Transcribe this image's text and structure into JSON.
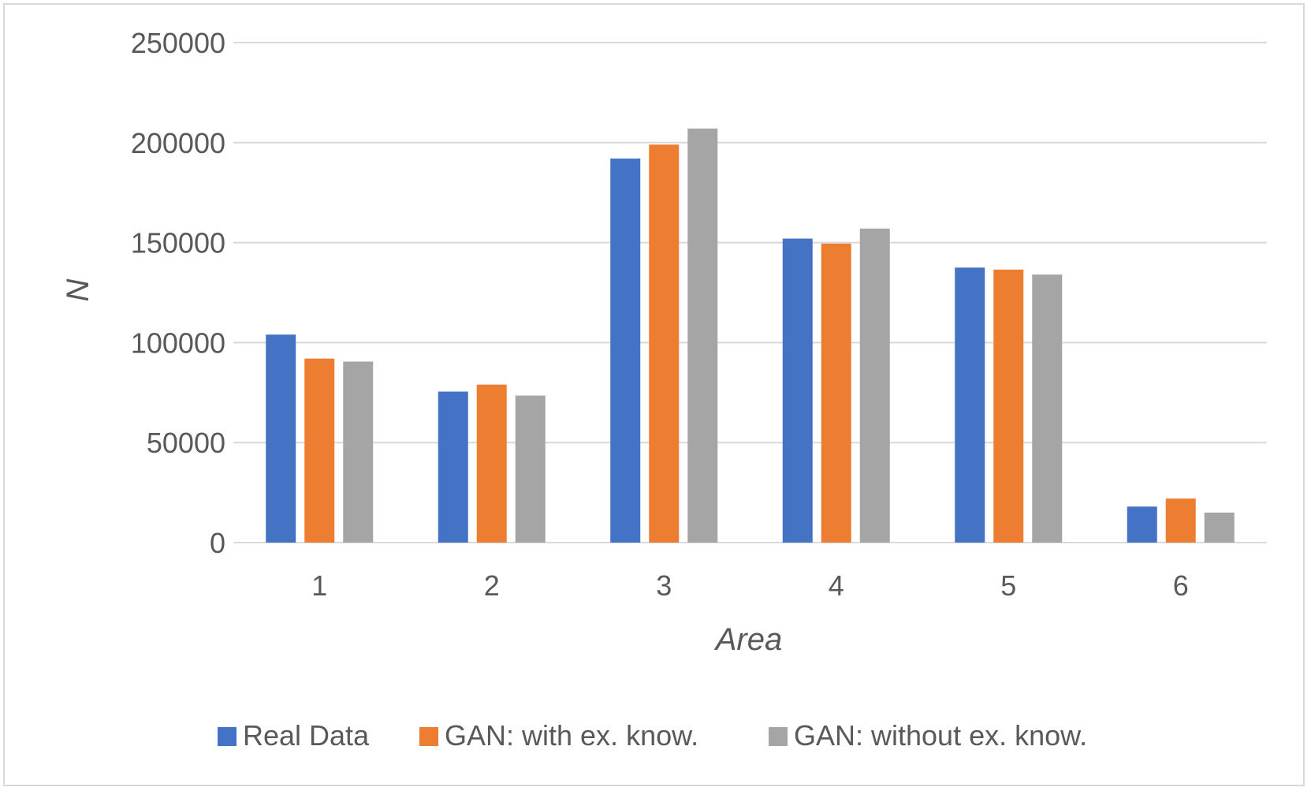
{
  "chart_data": {
    "type": "bar",
    "categories": [
      "1",
      "2",
      "3",
      "4",
      "5",
      "6"
    ],
    "series": [
      {
        "name": "Real Data",
        "color": "#4472c4",
        "values": [
          104000,
          75500,
          192000,
          152000,
          137500,
          18000
        ]
      },
      {
        "name": "GAN: with ex. know.",
        "color": "#ed7d31",
        "values": [
          92000,
          79000,
          199000,
          149500,
          136500,
          22000
        ]
      },
      {
        "name": "GAN: without ex. know.",
        "color": "#a5a5a5",
        "values": [
          90500,
          73500,
          207000,
          157000,
          134000,
          15000
        ]
      }
    ],
    "xlabel": "Area",
    "ylabel": "N",
    "ylim": [
      0,
      250000
    ],
    "yticks": [
      "0",
      "50000",
      "100000",
      "150000",
      "200000",
      "250000"
    ],
    "grid": true,
    "legend_position": "bottom"
  }
}
